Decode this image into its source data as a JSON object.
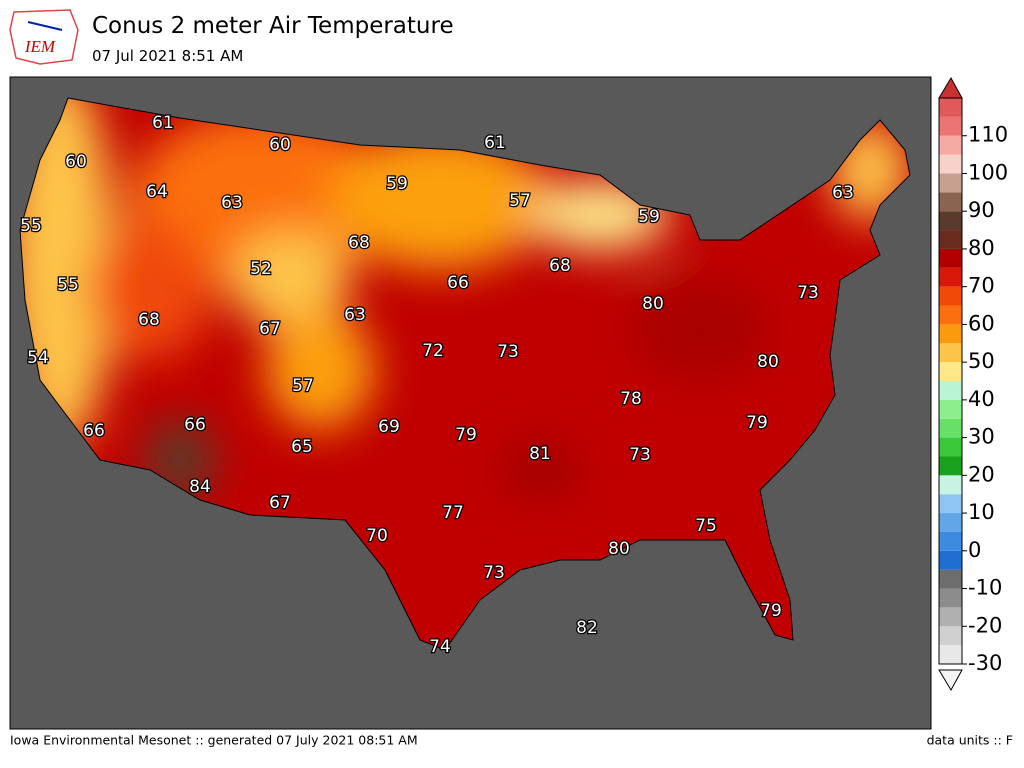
{
  "header": {
    "logo": "IEM",
    "title": "Conus 2 meter Air Temperature",
    "subtitle": "07 Jul 2021 8:51 AM"
  },
  "map": {
    "labels": [
      61,
      60,
      60,
      61,
      64,
      63,
      59,
      57,
      63,
      59,
      55,
      68,
      52,
      68,
      66,
      55,
      68,
      67,
      63,
      73,
      80,
      72,
      73,
      54,
      80,
      57,
      78,
      66,
      69,
      79,
      79,
      66,
      65,
      81,
      73,
      84,
      67,
      77,
      75,
      70,
      80,
      73,
      79,
      82,
      74
    ]
  },
  "colorbar": {
    "lim": [
      -30,
      120
    ],
    "ticks": [
      -30,
      -20,
      -10,
      0,
      10,
      20,
      30,
      40,
      50,
      60,
      70,
      80,
      90,
      100,
      110
    ],
    "colors": [
      "#e8e8e8",
      "#d0d0d0",
      "#b0b0b0",
      "#8c8c8c",
      "#6e6e6e",
      "#1f6fd0",
      "#3d8be0",
      "#62a6e8",
      "#8ec5f2",
      "#c8f2e4",
      "#17a11c",
      "#3ac83a",
      "#66e066",
      "#8cef8c",
      "#b8f5d4",
      "#fde98a",
      "#fdc44a",
      "#fc9a0e",
      "#fb6f10",
      "#f04a08",
      "#d81808",
      "#b00000",
      "#6a2a1e",
      "#5a3a2c",
      "#8a6450",
      "#c8a090",
      "#f6d2ca",
      "#f6aaa4",
      "#ec7474",
      "#e05a5a"
    ]
  },
  "footer": {
    "left": "Iowa Environmental Mesonet :: generated 07 July 2021 08:51 AM",
    "right": "data units :: F"
  }
}
